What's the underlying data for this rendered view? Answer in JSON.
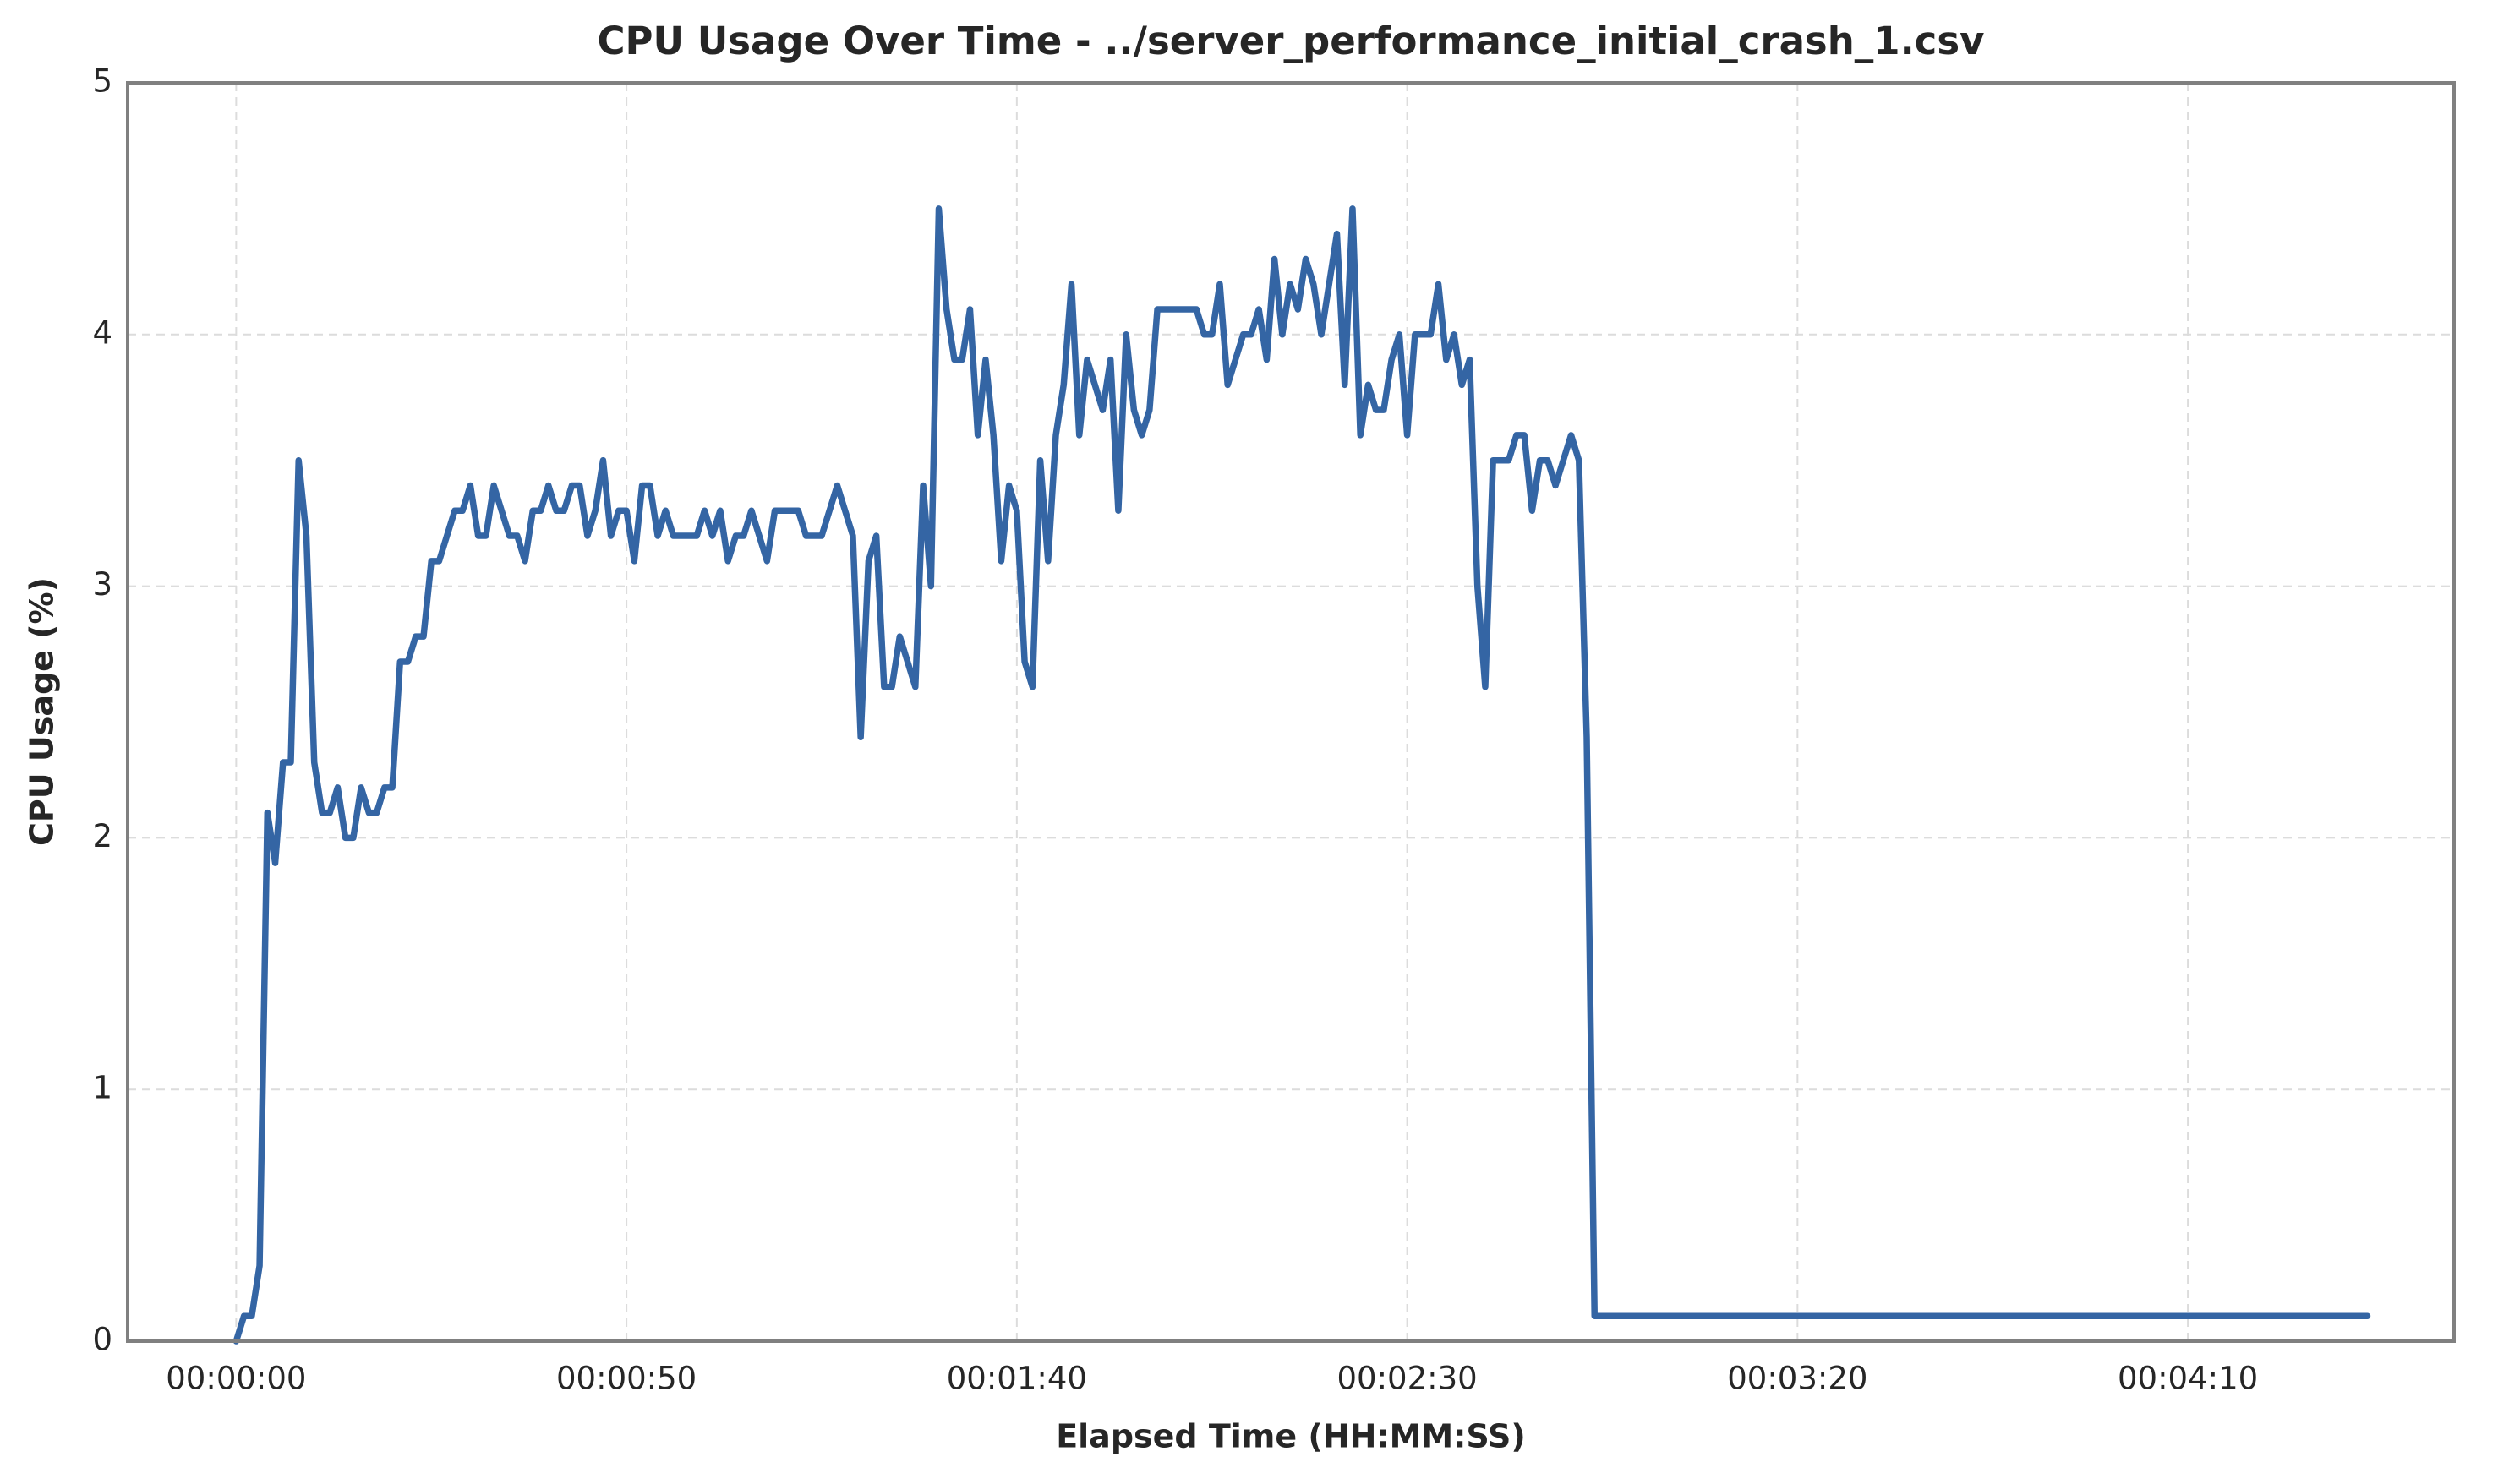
{
  "chart_data": {
    "type": "line",
    "title": "CPU Usage Over Time - ../server_performance_initial_crash_1.csv",
    "x_label": "Elapsed Time (HH:MM:SS)",
    "y_label": "CPU Usage (%)",
    "color": "#3465a4",
    "grid": true,
    "xlim": [
      -13.9,
      284.1
    ],
    "ylim": [
      0,
      5
    ],
    "xticks": [
      {
        "value": 0,
        "label": "00:00:00"
      },
      {
        "value": 50,
        "label": "00:00:50"
      },
      {
        "value": 100,
        "label": "00:01:40"
      },
      {
        "value": 150,
        "label": "00:02:30"
      },
      {
        "value": 200,
        "label": "00:03:20"
      },
      {
        "value": 250,
        "label": "00:04:10"
      }
    ],
    "yticks": [
      0,
      1,
      2,
      3,
      4,
      5
    ],
    "x": [
      0,
      1,
      2,
      3,
      4,
      5,
      6,
      7,
      8,
      9,
      10,
      11,
      12,
      13,
      14,
      15,
      16,
      17,
      18,
      19,
      20,
      21,
      22,
      23,
      24,
      25,
      26,
      27,
      28,
      29,
      30,
      31,
      32,
      33,
      34,
      35,
      36,
      37,
      38,
      39,
      40,
      41,
      42,
      43,
      44,
      45,
      46,
      47,
      48,
      49,
      50,
      51,
      52,
      53,
      54,
      55,
      56,
      57,
      58,
      59,
      60,
      61,
      62,
      63,
      64,
      65,
      66,
      67,
      68,
      69,
      70,
      71,
      72,
      73,
      74,
      75,
      76,
      77,
      78,
      79,
      80,
      81,
      82,
      83,
      84,
      85,
      86,
      87,
      88,
      89,
      90,
      91,
      92,
      93,
      94,
      95,
      96,
      97,
      98,
      99,
      100,
      101,
      102,
      103,
      104,
      105,
      106,
      107,
      108,
      109,
      110,
      111,
      112,
      113,
      114,
      115,
      116,
      117,
      118,
      119,
      120,
      121,
      122,
      123,
      124,
      125,
      126,
      127,
      128,
      129,
      130,
      131,
      132,
      133,
      134,
      135,
      136,
      137,
      138,
      139,
      140,
      141,
      142,
      143,
      144,
      145,
      146,
      147,
      148,
      149,
      150,
      151,
      152,
      153,
      154,
      155,
      156,
      157,
      158,
      159,
      160,
      161,
      162,
      163,
      164,
      165,
      166,
      167,
      168,
      169,
      170,
      171,
      172,
      173,
      174,
      273
    ],
    "values": [
      0,
      0.1,
      0.1,
      0.3,
      2.1,
      1.9,
      2.3,
      2.3,
      3.5,
      3.2,
      2.3,
      2.1,
      2.1,
      2.2,
      2.0,
      2.0,
      2.2,
      2.1,
      2.1,
      2.2,
      2.2,
      2.7,
      2.7,
      2.8,
      2.8,
      3.1,
      3.1,
      3.2,
      3.3,
      3.3,
      3.4,
      3.2,
      3.2,
      3.4,
      3.3,
      3.2,
      3.2,
      3.1,
      3.3,
      3.3,
      3.4,
      3.3,
      3.3,
      3.4,
      3.4,
      3.2,
      3.3,
      3.5,
      3.2,
      3.3,
      3.3,
      3.1,
      3.4,
      3.4,
      3.2,
      3.3,
      3.2,
      3.2,
      3.2,
      3.2,
      3.3,
      3.2,
      3.3,
      3.1,
      3.2,
      3.2,
      3.3,
      3.2,
      3.1,
      3.3,
      3.3,
      3.3,
      3.3,
      3.2,
      3.2,
      3.2,
      3.3,
      3.4,
      3.3,
      3.2,
      2.4,
      3.1,
      3.2,
      2.6,
      2.6,
      2.8,
      2.7,
      2.6,
      3.4,
      3.0,
      4.5,
      4.1,
      3.9,
      3.9,
      4.1,
      3.6,
      3.9,
      3.6,
      3.1,
      3.4,
      3.3,
      2.7,
      2.6,
      3.5,
      3.1,
      3.6,
      3.8,
      4.2,
      3.6,
      3.9,
      3.8,
      3.7,
      3.9,
      3.3,
      4.0,
      3.7,
      3.6,
      3.7,
      4.1,
      4.1,
      4.1,
      4.1,
      4.1,
      4.1,
      4.0,
      4.0,
      4.2,
      3.8,
      3.9,
      4.0,
      4.0,
      4.1,
      3.9,
      4.3,
      4.0,
      4.2,
      4.1,
      4.3,
      4.2,
      4.0,
      4.2,
      4.4,
      3.8,
      4.5,
      3.6,
      3.8,
      3.7,
      3.7,
      3.9,
      4.0,
      3.6,
      4.0,
      4.0,
      4.0,
      4.2,
      3.9,
      4.0,
      3.8,
      3.9,
      3.0,
      2.6,
      3.5,
      3.5,
      3.5,
      3.6,
      3.6,
      3.3,
      3.5,
      3.5,
      3.4,
      3.5,
      3.6,
      3.5,
      2.4,
      0.1,
      0.1
    ]
  }
}
